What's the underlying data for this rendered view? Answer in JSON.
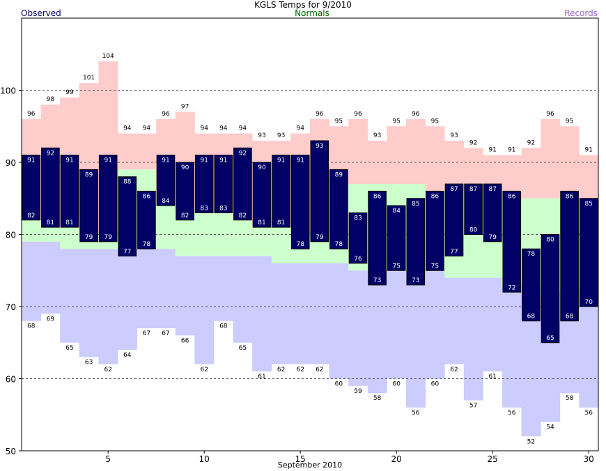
{
  "chart_data": {
    "type": "bar",
    "title": "KGLS Temps for 9/2010",
    "xlabel": "September 2010",
    "ylabel": "",
    "x": [
      1,
      2,
      3,
      4,
      5,
      6,
      7,
      8,
      9,
      10,
      11,
      12,
      13,
      14,
      15,
      16,
      17,
      18,
      19,
      20,
      21,
      22,
      23,
      24,
      25,
      26,
      27,
      28,
      29,
      30
    ],
    "xlim": [
      0.5,
      30.5
    ],
    "ylim": [
      50,
      110
    ],
    "x_ticks": [
      5,
      10,
      15,
      20,
      25,
      30
    ],
    "y_ticks": [
      50,
      60,
      70,
      80,
      90,
      100
    ],
    "grid": "dashed horizontal at 60, 70, 80, 90, 100",
    "legend": [
      {
        "label": "Observed",
        "position": "top-left",
        "color": "#000066"
      },
      {
        "label": "Normals",
        "position": "top-center",
        "color": "#006600"
      },
      {
        "label": "Records",
        "position": "top-right",
        "color": "#9966cc"
      }
    ],
    "series": [
      {
        "key": "record_high",
        "color": "#ffcccc",
        "label_color": "#000000",
        "values": [
          96,
          98,
          99,
          101,
          104,
          94,
          94,
          96,
          97,
          94,
          94,
          94,
          93,
          93,
          94,
          96,
          95,
          96,
          93,
          95,
          96,
          95,
          93,
          92,
          91,
          91,
          92,
          96,
          95,
          91
        ]
      },
      {
        "key": "record_low",
        "color": "#ccccff",
        "label_color": "#000000",
        "values": [
          68,
          69,
          65,
          63,
          62,
          64,
          67,
          67,
          66,
          62,
          68,
          65,
          61,
          62,
          62,
          62,
          60,
          59,
          58,
          60,
          56,
          60,
          62,
          57,
          61,
          56,
          52,
          54,
          58,
          56
        ]
      },
      {
        "key": "normal_high",
        "color": "#ccffcc",
        "values": [
          82,
          81,
          81,
          80,
          80,
          89,
          89,
          84,
          83,
          83,
          83,
          82,
          81,
          81,
          80,
          80,
          80,
          87,
          87,
          87,
          87,
          86,
          86,
          86,
          86,
          85,
          85,
          85,
          85,
          85
        ]
      },
      {
        "key": "normal_low",
        "color": "#ccffcc",
        "values": [
          79,
          79,
          78,
          78,
          78,
          78,
          78,
          78,
          77,
          77,
          77,
          77,
          77,
          76,
          76,
          76,
          76,
          75,
          75,
          75,
          75,
          75,
          74,
          74,
          74,
          73,
          73,
          72,
          72,
          70
        ]
      },
      {
        "key": "observed_high",
        "color": "#000066",
        "label_color": "#ffffff",
        "values": [
          91,
          92,
          91,
          89,
          91,
          88,
          86,
          91,
          90,
          91,
          91,
          92,
          90,
          91,
          91,
          93,
          89,
          83,
          86,
          84,
          85,
          86,
          87,
          87,
          87,
          86,
          78,
          80,
          86,
          85
        ]
      },
      {
        "key": "observed_low",
        "color": "#000066",
        "label_color": "#ffffff",
        "values": [
          82,
          81,
          81,
          79,
          79,
          77,
          78,
          84,
          82,
          83,
          83,
          82,
          81,
          81,
          78,
          79,
          78,
          76,
          73,
          75,
          73,
          75,
          77,
          80,
          79,
          72,
          68,
          65,
          68,
          70
        ]
      }
    ]
  }
}
